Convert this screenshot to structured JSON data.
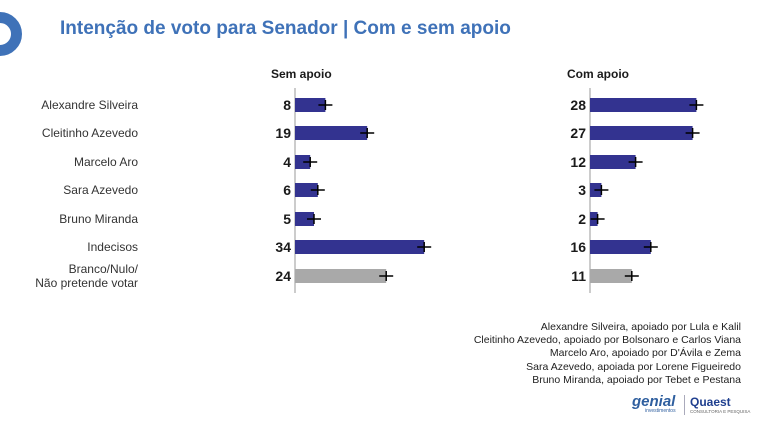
{
  "title": "Intenção de voto para Senador | Com e sem apoio",
  "chart_data": [
    {
      "type": "bar",
      "orientation": "horizontal",
      "title": "Sem apoio",
      "categories": [
        "Alexandre Silveira",
        "Cleitinho Azevedo",
        "Marcelo Aro",
        "Sara Azevedo",
        "Bruno Miranda",
        "Indecisos",
        "Branco/Nulo/ Não pretende votar"
      ],
      "values": [
        8,
        19,
        4,
        6,
        5,
        34,
        24
      ],
      "bar_colors": [
        "#333390",
        "#333390",
        "#333390",
        "#333390",
        "#333390",
        "#333390",
        "#a9a9a9"
      ]
    },
    {
      "type": "bar",
      "orientation": "horizontal",
      "title": "Com apoio",
      "categories": [
        "Alexandre Silveira",
        "Cleitinho Azevedo",
        "Marcelo Aro",
        "Sara Azevedo",
        "Bruno Miranda",
        "Indecisos",
        "Branco/Nulo/ Não pretende votar"
      ],
      "values": [
        28,
        27,
        12,
        3,
        2,
        16,
        11
      ],
      "bar_colors": [
        "#333390",
        "#333390",
        "#333390",
        "#333390",
        "#333390",
        "#333390",
        "#a9a9a9"
      ]
    }
  ],
  "category_labels": [
    [
      "Alexandre Silveira"
    ],
    [
      "Cleitinho Azevedo"
    ],
    [
      "Marcelo Aro"
    ],
    [
      "Sara Azevedo"
    ],
    [
      "Bruno Miranda"
    ],
    [
      "Indecisos"
    ],
    [
      "Branco/Nulo/",
      "Não pretende votar"
    ]
  ],
  "notes": [
    "Alexandre Silveira, apoiado por Lula e Kalil",
    "Cleitinho Azevedo, apoiado por Bolsonaro e Carlos Viana",
    "Marcelo Aro, apoiado por D'Ávila e Zema",
    "Sara Azevedo, apoiada por Lorene Figueiredo",
    "Bruno Miranda, apoiado por Tebet e Pestana"
  ],
  "logos": {
    "genial": "genial",
    "genial_sub": "investimentos",
    "quaest": "Quaest",
    "quaest_sub": "CONSULTORIA E PESQUISA"
  },
  "colors": {
    "accent": "#3f72b8",
    "bar": "#333390",
    "bar_other": "#a9a9a9"
  }
}
